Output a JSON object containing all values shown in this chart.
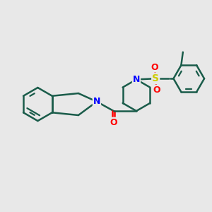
{
  "background_color": "#e8e8e8",
  "bond_color": "#1a5c4a",
  "N_color": "#0000ff",
  "O_color": "#ff0000",
  "S_color": "#cccc00",
  "line_width": 1.8,
  "figsize": [
    3.0,
    3.0
  ],
  "dpi": 100,
  "xlim": [
    0,
    12
  ],
  "ylim": [
    0,
    12
  ]
}
